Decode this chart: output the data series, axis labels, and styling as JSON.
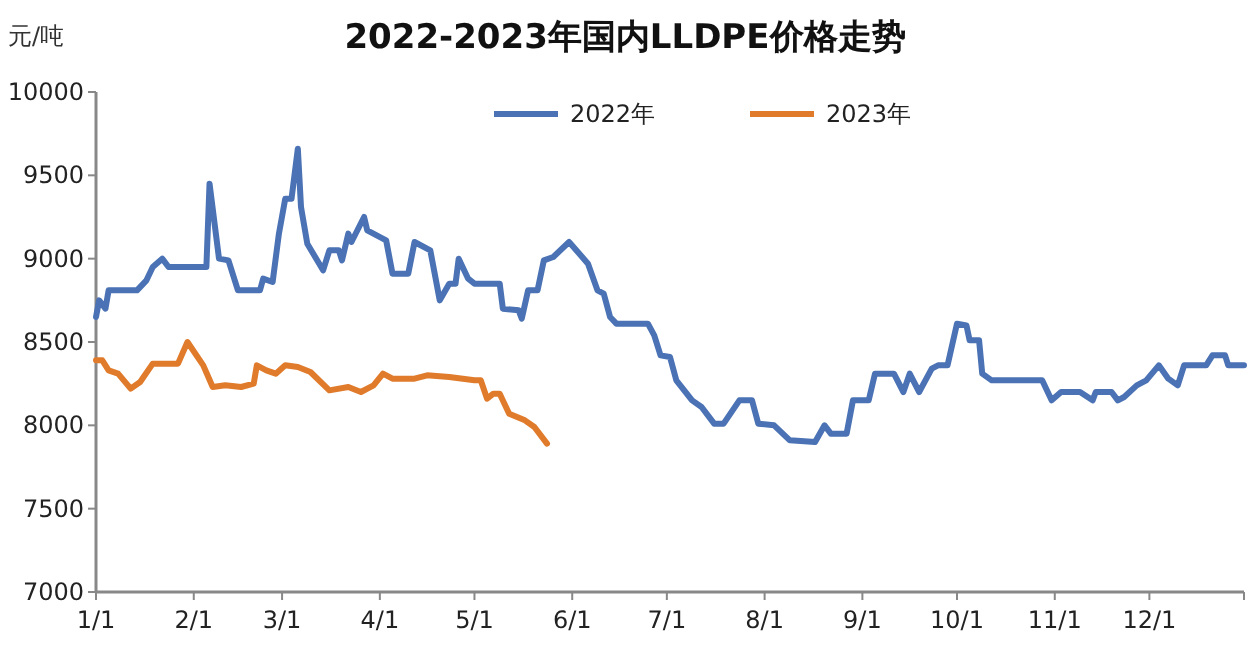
{
  "chart_data": {
    "type": "line",
    "title": "2022-2023年国内LLDPE价格走势",
    "ylabel": "元/吨",
    "legend": "top",
    "xlim": [
      "--01-01",
      "--12-31"
    ],
    "xticks": [
      {
        "value": "--01-01",
        "label": "1/1"
      },
      {
        "value": "--02-01",
        "label": "2/1"
      },
      {
        "value": "--03-01",
        "label": "3/1"
      },
      {
        "value": "--04-01",
        "label": "4/1"
      },
      {
        "value": "--05-01",
        "label": "5/1"
      },
      {
        "value": "--06-01",
        "label": "6/1"
      },
      {
        "value": "--07-01",
        "label": "7/1"
      },
      {
        "value": "--08-01",
        "label": "8/1"
      },
      {
        "value": "--09-01",
        "label": "9/1"
      },
      {
        "value": "--10-01",
        "label": "10/1"
      },
      {
        "value": "--11-01",
        "label": "11/1"
      },
      {
        "value": "--12-01",
        "label": "12/1"
      }
    ],
    "ylim": [
      7000,
      10000
    ],
    "yticks": [
      7000,
      7500,
      8000,
      8500,
      9000,
      9500,
      10000
    ],
    "series": [
      {
        "name": "2022年",
        "color": "#4a72b4",
        "x": [
          "--01-01",
          "--01-02",
          "--01-04",
          "--01-05",
          "--01-14",
          "--01-17",
          "--01-19",
          "--01-22",
          "--01-24",
          "--02-05",
          "--02-06",
          "--02-09",
          "--02-12",
          "--02-15",
          "--02-22",
          "--02-23",
          "--02-26",
          "--02-28",
          "--03-02",
          "--03-04",
          "--03-06",
          "--03-07",
          "--03-09",
          "--03-14",
          "--03-16",
          "--03-19",
          "--03-20",
          "--03-22",
          "--03-23",
          "--03-27",
          "--03-28",
          "--04-03",
          "--04-05",
          "--04-10",
          "--04-12",
          "--04-17",
          "--04-20",
          "--04-23",
          "--04-25",
          "--04-26",
          "--04-29",
          "--05-01",
          "--05-09",
          "--05-10",
          "--05-15",
          "--05-16",
          "--05-18",
          "--05-21",
          "--05-23",
          "--05-26",
          "--05-31",
          "--06-06",
          "--06-09",
          "--06-11",
          "--06-13",
          "--06-15",
          "--06-25",
          "--06-27",
          "--06-29",
          "--07-02",
          "--07-04",
          "--07-09",
          "--07-12",
          "--07-16",
          "--07-19",
          "--07-24",
          "--07-28",
          "--07-30",
          "--08-04",
          "--08-09",
          "--08-17",
          "--08-20",
          "--08-22",
          "--08-27",
          "--08-29",
          "--09-03",
          "--09-05",
          "--09-11",
          "--09-14",
          "--09-16",
          "--09-19",
          "--09-23",
          "--09-25",
          "--09-28",
          "--10-01",
          "--10-04",
          "--10-05",
          "--10-08",
          "--10-09",
          "--10-12",
          "--10-28",
          "--10-31",
          "--11-03",
          "--11-09",
          "--11-13",
          "--11-14",
          "--11-19",
          "--11-21",
          "--11-23",
          "--11-27",
          "--11-30",
          "--12-04",
          "--12-07",
          "--12-10",
          "--12-12",
          "--12-19",
          "--12-21",
          "--12-25",
          "--12-26",
          "--12-31"
        ],
        "values": [
          8650,
          8750,
          8700,
          8810,
          8810,
          8870,
          8950,
          9000,
          8950,
          8950,
          9450,
          9000,
          8990,
          8810,
          8810,
          8880,
          8860,
          9150,
          9360,
          9360,
          9660,
          9310,
          9090,
          8930,
          9050,
          9050,
          8990,
          9150,
          9100,
          9250,
          9170,
          9110,
          8910,
          8910,
          9100,
          9050,
          8750,
          8850,
          8850,
          9000,
          8880,
          8850,
          8850,
          8700,
          8690,
          8640,
          8810,
          8810,
          8990,
          9010,
          9100,
          8970,
          8810,
          8790,
          8650,
          8610,
          8610,
          8540,
          8420,
          8410,
          8270,
          8150,
          8110,
          8010,
          8010,
          8150,
          8150,
          8010,
          8000,
          7910,
          7900,
          8000,
          7950,
          7950,
          8150,
          8150,
          8310,
          8310,
          8200,
          8310,
          8200,
          8340,
          8360,
          8360,
          8610,
          8600,
          8510,
          8510,
          8310,
          8270,
          8270,
          8150,
          8200,
          8200,
          8150,
          8200,
          8200,
          8150,
          8170,
          8240,
          8270,
          8360,
          8280,
          8240,
          8360,
          8360,
          8420,
          8420,
          8360,
          8360
        ]
      },
      {
        "name": "2023年",
        "color": "#e07b2c",
        "x": [
          "--01-01",
          "--01-03",
          "--01-05",
          "--01-08",
          "--01-12",
          "--01-15",
          "--01-19",
          "--01-27",
          "--01-30",
          "--02-04",
          "--02-07",
          "--02-11",
          "--02-16",
          "--02-20",
          "--02-21",
          "--02-24",
          "--02-27",
          "--03-02",
          "--03-06",
          "--03-10",
          "--03-16",
          "--03-22",
          "--03-26",
          "--03-30",
          "--04-02",
          "--04-05",
          "--04-12",
          "--04-16",
          "--04-23",
          "--05-01",
          "--05-03",
          "--05-05",
          "--05-07",
          "--05-09",
          "--05-12",
          "--05-17",
          "--05-20",
          "--05-24"
        ],
        "values": [
          8390,
          8390,
          8330,
          8310,
          8220,
          8260,
          8370,
          8370,
          8500,
          8360,
          8230,
          8240,
          8230,
          8250,
          8360,
          8330,
          8310,
          8360,
          8350,
          8320,
          8210,
          8230,
          8200,
          8240,
          8310,
          8280,
          8280,
          8300,
          8290,
          8270,
          8270,
          8160,
          8190,
          8190,
          8070,
          8030,
          7990,
          7890
        ]
      }
    ]
  }
}
